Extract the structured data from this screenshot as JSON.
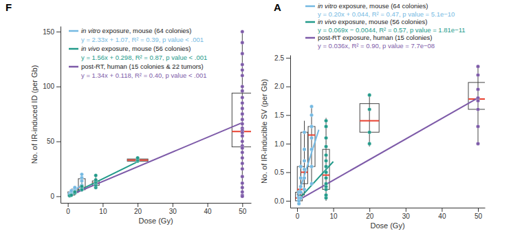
{
  "chart_data": [
    {
      "type": "scatter",
      "panel_label": "F",
      "x_label": "Dose (Gy)",
      "y_label": "No. of IR-induced ID (per Gb)",
      "xlim": [
        -2.1,
        52.5
      ],
      "ylim": [
        -6,
        155
      ],
      "xticks": [
        0,
        10,
        20,
        30,
        40,
        50
      ],
      "yticks": [
        0,
        50,
        100,
        150
      ],
      "legend": "top-left",
      "series": [
        {
          "name": "in vitro exposure, mouse (64 colonies)",
          "color": "#74b9e2",
          "equation": "y = 2.33x + 1.07, R² = 0.39, p value < .001",
          "x": [
            0.5,
            0.5,
            0.5,
            1,
            1,
            1,
            1,
            2,
            2,
            2,
            2,
            2,
            4,
            4,
            4,
            4,
            4,
            4
          ],
          "values": [
            0.5,
            1.5,
            2.5,
            2,
            3,
            4,
            5,
            4,
            5,
            6,
            7,
            8,
            6,
            8,
            10,
            14,
            17,
            20
          ],
          "fit": {
            "x": [
              0,
              4
            ],
            "values": [
              1.07,
              10.4
            ]
          }
        },
        {
          "name": "in vivo exposure, mouse (56 colonies)",
          "color": "#229a8a",
          "equation": "y = 1.56x + 0.298, R² = 0.87, p value < .001",
          "x": [
            0.5,
            1,
            2,
            2,
            4,
            4,
            8,
            8,
            8,
            8,
            8,
            8,
            20,
            20,
            20
          ],
          "values": [
            0.5,
            1,
            3,
            4,
            6,
            9,
            8,
            10,
            12,
            13,
            15,
            19,
            32,
            33,
            35
          ],
          "fit": {
            "x": [
              0,
              20
            ],
            "values": [
              0.3,
              31.5
            ]
          }
        },
        {
          "name": "post-RT, human (15 colonies & 22 tumors)",
          "color": "#7d5aa8",
          "equation": "y = 1.34x + 0.118, R² = 0.40, p value < .001",
          "x": [
            50,
            50,
            50,
            50,
            50,
            50,
            50,
            50,
            50,
            50,
            50,
            50,
            50,
            50,
            50,
            50,
            50,
            50,
            50,
            50,
            50,
            50,
            50,
            50,
            50,
            50,
            50,
            50,
            50,
            50,
            50
          ],
          "values": [
            150,
            140,
            130,
            120,
            115,
            110,
            100,
            96,
            90,
            85,
            80,
            75,
            70,
            66,
            62,
            60,
            58,
            55,
            50,
            46,
            44,
            40,
            35,
            30,
            25,
            18,
            12,
            8,
            4,
            1,
            0
          ],
          "fit": {
            "x": [
              0,
              50
            ],
            "values": [
              0.1,
              67.1
            ]
          }
        }
      ],
      "boxes": [
        {
          "x": 1,
          "min": 0,
          "q1": 1,
          "median": 2,
          "q3": 4,
          "max": 6
        },
        {
          "x": 2,
          "min": 2,
          "q1": 3.5,
          "median": 5,
          "q3": 6.5,
          "max": 9
        },
        {
          "x": 4,
          "min": 4,
          "q1": 6,
          "median": 8,
          "q3": 16,
          "max": 20
        },
        {
          "x": 8,
          "min": 7,
          "q1": 10,
          "median": 12,
          "q3": 14,
          "max": 20
        },
        {
          "x": 20,
          "min": 31,
          "q1": 32,
          "median": 33,
          "q3": 34,
          "max": 36
        },
        {
          "x": 50,
          "min": 0,
          "q1": 45,
          "median": 59,
          "q3": 94,
          "max": 150
        }
      ]
    },
    {
      "type": "scatter",
      "panel_label": "A",
      "x_label": "Dose (Gy)",
      "y_label": "No. of IR-inducible SV (per Gb)",
      "xlim": [
        -1.9,
        51.9
      ],
      "ylim": [
        -0.12,
        2.55
      ],
      "xticks": [
        0,
        10,
        20,
        30,
        40,
        50
      ],
      "yticks": [
        {
          "value": 0,
          "label": "0.0"
        },
        0.5,
        {
          "value": 1,
          "label": "1.0"
        },
        1.5,
        {
          "value": 2,
          "label": "2.0"
        },
        2.5
      ],
      "legend": "top",
      "series": [
        {
          "name": "in vitro exposure, mouse (64 colonies)",
          "color": "#74b9e2",
          "equation": "y = 0.20x + 0.044, R² = 0.47, p value = 5.1e−10",
          "x": [
            0.5,
            0.5,
            0.5,
            0.5,
            1,
            1,
            1,
            1,
            1,
            2,
            2,
            2,
            2,
            2,
            2,
            4,
            4,
            4,
            4,
            4,
            4,
            4
          ],
          "values": [
            -0.05,
            0.0,
            0.05,
            0.15,
            0.05,
            0.15,
            0.25,
            0.4,
            0.6,
            0.2,
            0.4,
            0.55,
            0.7,
            0.9,
            1.2,
            0.3,
            0.6,
            0.9,
            1.1,
            1.3,
            1.5,
            1.65
          ],
          "fit": {
            "x": [
              0,
              6
            ],
            "values": [
              0.044,
              1.244
            ]
          }
        },
        {
          "name": "in vivo exposure, mouse (56 colonies)",
          "color": "#229a8a",
          "equation": "y = 0.069x − 0.0044, R² = 0.57, p value = 1.81e−11",
          "x": [
            8,
            8,
            8,
            8,
            8,
            8,
            8,
            8,
            8,
            8,
            8,
            8,
            8,
            8,
            20,
            20,
            20,
            20
          ],
          "values": [
            0.05,
            0.1,
            0.2,
            0.25,
            0.3,
            0.4,
            0.5,
            0.6,
            0.7,
            0.8,
            0.95,
            1.1,
            1.3,
            1.4,
            1.0,
            1.2,
            1.6,
            1.85
          ],
          "fit": {
            "x": [
              0,
              10
            ],
            "values": [
              -0.0044,
              0.686
            ]
          }
        },
        {
          "name": "post-RT exposure, human (15 colonies)",
          "color": "#7d5aa8",
          "equation": "y = 0.036x, R² = 0.90, p value = 7.7e−08",
          "x": [
            50,
            50,
            50,
            50,
            50,
            50,
            50,
            50
          ],
          "values": [
            2.35,
            2.2,
            1.95,
            1.8,
            1.75,
            1.6,
            1.3,
            1.0
          ],
          "fit": {
            "x": [
              0,
              50
            ],
            "values": [
              0,
              1.8
            ]
          }
        }
      ],
      "boxes": [
        {
          "x": 0.5,
          "min": -0.05,
          "q1": 0,
          "median": 0.05,
          "q3": 0.15,
          "max": 0.2
        },
        {
          "x": 1,
          "min": 0,
          "q1": 0.1,
          "median": 0.2,
          "q3": 0.6,
          "max": 0.7
        },
        {
          "x": 2,
          "min": 0.1,
          "q1": 0.3,
          "median": 0.5,
          "q3": 1.2,
          "max": 1.4
        },
        {
          "x": 4,
          "min": 0.3,
          "q1": 0.6,
          "median": 1.15,
          "q3": 1.3,
          "max": 1.65
        },
        {
          "x": 8,
          "min": 0,
          "q1": 0.2,
          "median": 0.45,
          "q3": 0.9,
          "max": 1.45
        },
        {
          "x": 20,
          "min": 0.95,
          "q1": 1.2,
          "median": 1.4,
          "q3": 1.7,
          "max": 1.85
        },
        {
          "x": 50,
          "min": 1.0,
          "q1": 1.6,
          "median": 1.78,
          "q3": 2.07,
          "max": 2.35
        }
      ]
    }
  ]
}
